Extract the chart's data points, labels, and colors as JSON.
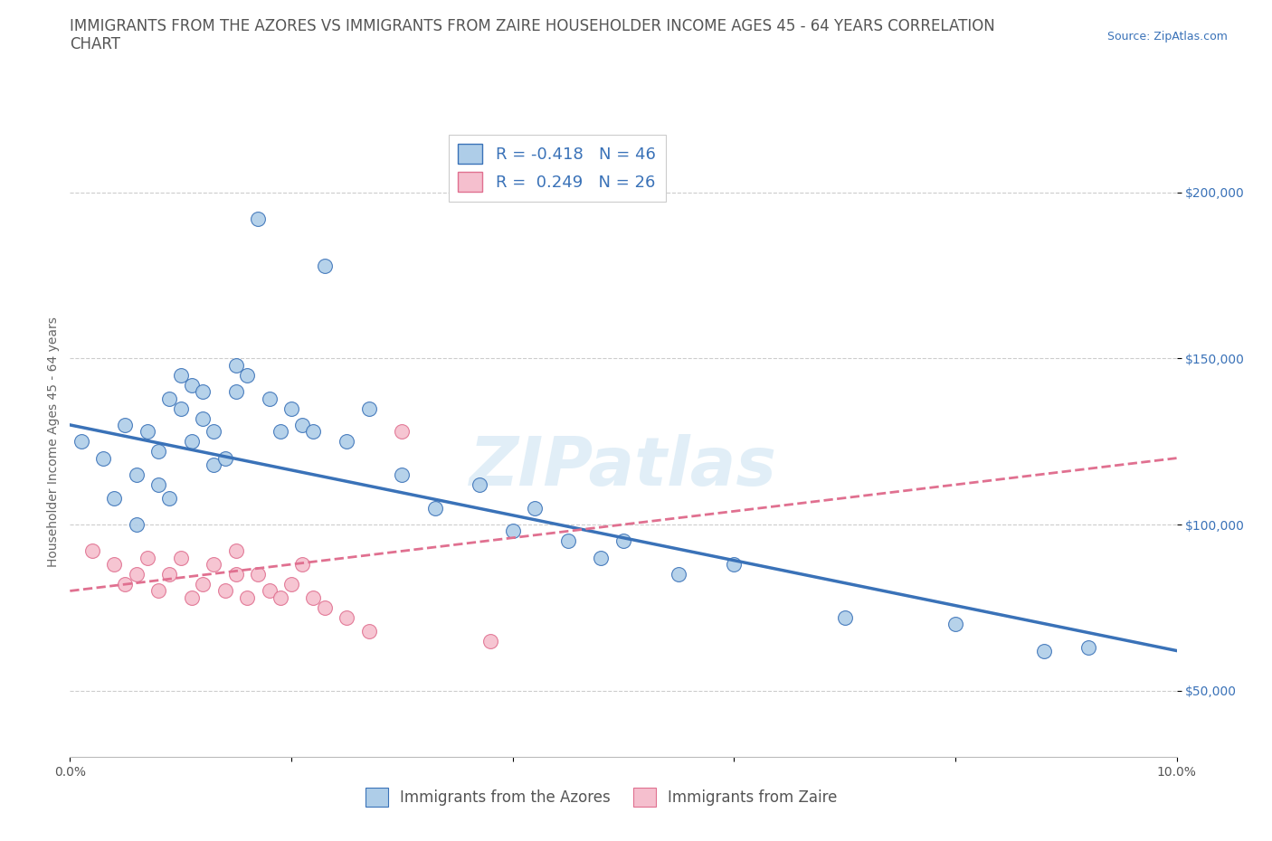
{
  "title_line1": "IMMIGRANTS FROM THE AZORES VS IMMIGRANTS FROM ZAIRE HOUSEHOLDER INCOME AGES 45 - 64 YEARS CORRELATION",
  "title_line2": "CHART",
  "source": "Source: ZipAtlas.com",
  "ylabel": "Householder Income Ages 45 - 64 years",
  "xlim": [
    0.0,
    0.1
  ],
  "ylim": [
    30000,
    220000
  ],
  "yticks": [
    50000,
    100000,
    150000,
    200000
  ],
  "ytick_labels": [
    "$50,000",
    "$100,000",
    "$150,000",
    "$200,000"
  ],
  "watermark": "ZIPatlas",
  "legend_r1": "R = -0.418   N = 46",
  "legend_r2": "R =  0.249   N = 26",
  "azores_color": "#aecde8",
  "azores_line_color": "#3a72b8",
  "azores_edge_color": "#3a72b8",
  "zaire_color": "#f5bfce",
  "zaire_line_color": "#e07090",
  "zaire_edge_color": "#e07090",
  "background_color": "#ffffff",
  "grid_color": "#cccccc",
  "azores_line_y0": 130000,
  "azores_line_y1": 62000,
  "zaire_line_y0": 80000,
  "zaire_line_y1": 120000,
  "azores_x": [
    0.001,
    0.003,
    0.004,
    0.005,
    0.006,
    0.006,
    0.007,
    0.008,
    0.008,
    0.009,
    0.009,
    0.01,
    0.01,
    0.011,
    0.011,
    0.012,
    0.012,
    0.013,
    0.013,
    0.014,
    0.015,
    0.015,
    0.016,
    0.017,
    0.018,
    0.019,
    0.02,
    0.021,
    0.022,
    0.023,
    0.025,
    0.027,
    0.03,
    0.033,
    0.037,
    0.04,
    0.042,
    0.045,
    0.048,
    0.05,
    0.055,
    0.06,
    0.07,
    0.08,
    0.088,
    0.092
  ],
  "azores_y": [
    125000,
    120000,
    108000,
    130000,
    115000,
    100000,
    128000,
    112000,
    122000,
    138000,
    108000,
    145000,
    135000,
    142000,
    125000,
    140000,
    132000,
    128000,
    118000,
    120000,
    148000,
    140000,
    145000,
    192000,
    138000,
    128000,
    135000,
    130000,
    128000,
    178000,
    125000,
    135000,
    115000,
    105000,
    112000,
    98000,
    105000,
    95000,
    90000,
    95000,
    85000,
    88000,
    72000,
    70000,
    62000,
    63000
  ],
  "zaire_x": [
    0.002,
    0.004,
    0.005,
    0.006,
    0.007,
    0.008,
    0.009,
    0.01,
    0.011,
    0.012,
    0.013,
    0.014,
    0.015,
    0.015,
    0.016,
    0.017,
    0.018,
    0.019,
    0.02,
    0.021,
    0.022,
    0.023,
    0.025,
    0.027,
    0.03,
    0.038
  ],
  "zaire_y": [
    92000,
    88000,
    82000,
    85000,
    90000,
    80000,
    85000,
    90000,
    78000,
    82000,
    88000,
    80000,
    85000,
    92000,
    78000,
    85000,
    80000,
    78000,
    82000,
    88000,
    78000,
    75000,
    72000,
    68000,
    128000,
    65000
  ],
  "title_fontsize": 12,
  "axis_label_fontsize": 10,
  "tick_fontsize": 10,
  "legend_fontsize": 13
}
